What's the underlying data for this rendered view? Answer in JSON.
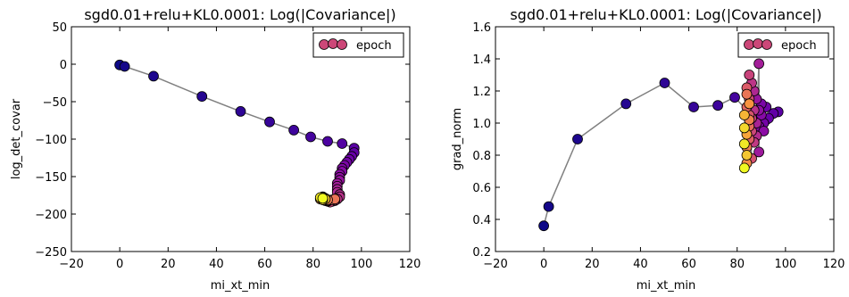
{
  "chart_data": [
    {
      "type": "scatter",
      "title": "sgd0.01+relu+KL0.0001: Log(|Covariance|)",
      "xlabel": "mi_xt_min",
      "ylabel": "log_det_covar",
      "xlim": [
        -20,
        120
      ],
      "ylim": [
        -250,
        50
      ],
      "xticks": [
        -20,
        0,
        20,
        40,
        60,
        80,
        100,
        120
      ],
      "yticks": [
        -250,
        -200,
        -150,
        -100,
        -50,
        0,
        50
      ],
      "xtick_labels": [
        "−20",
        "0",
        "20",
        "40",
        "60",
        "80",
        "100",
        "120"
      ],
      "ytick_labels": [
        "−250",
        "−200",
        "−150",
        "−100",
        "−50",
        "0",
        "50"
      ],
      "legend": {
        "label": "epoch",
        "position": "upper right"
      },
      "colormap": "plasma",
      "grid": false,
      "points": [
        [
          0,
          -1
        ],
        [
          2,
          -3
        ],
        [
          14,
          -16
        ],
        [
          34,
          -43
        ],
        [
          50,
          -63
        ],
        [
          62,
          -77
        ],
        [
          72,
          -88
        ],
        [
          79,
          -97
        ],
        [
          86,
          -103
        ],
        [
          92,
          -106
        ],
        [
          97,
          -112
        ],
        [
          97,
          -118
        ],
        [
          96,
          -123
        ],
        [
          95,
          -127
        ],
        [
          94,
          -131
        ],
        [
          93,
          -135
        ],
        [
          92,
          -139
        ],
        [
          92,
          -143
        ],
        [
          91,
          -147
        ],
        [
          91,
          -151
        ],
        [
          91,
          -155
        ],
        [
          90,
          -159
        ],
        [
          90,
          -163
        ],
        [
          90,
          -167
        ],
        [
          90,
          -171
        ],
        [
          91,
          -174
        ],
        [
          91,
          -177
        ],
        [
          90,
          -180
        ],
        [
          89,
          -182
        ],
        [
          88,
          -183
        ],
        [
          87,
          -184
        ],
        [
          86,
          -183
        ],
        [
          85,
          -182
        ],
        [
          84,
          -181
        ],
        [
          83,
          -179
        ],
        [
          84,
          -177
        ],
        [
          85,
          -180
        ],
        [
          86,
          -182
        ],
        [
          88,
          -181
        ],
        [
          89,
          -180
        ],
        [
          86,
          -181
        ],
        [
          84,
          -178
        ],
        [
          85,
          -179
        ],
        [
          83,
          -180
        ],
        [
          84,
          -179
        ],
        [
          84,
          -178
        ],
        [
          85,
          -180
        ],
        [
          84,
          -181
        ],
        [
          83,
          -178
        ],
        [
          84,
          -179
        ]
      ]
    },
    {
      "type": "scatter",
      "title": "sgd0.01+relu+KL0.0001: Log(|Covariance|)",
      "xlabel": "mi_xt_min",
      "ylabel": "grad_norm",
      "xlim": [
        -20,
        120
      ],
      "ylim": [
        0.2,
        1.6
      ],
      "xticks": [
        -20,
        0,
        20,
        40,
        60,
        80,
        100,
        120
      ],
      "yticks": [
        0.2,
        0.4,
        0.6,
        0.8,
        1.0,
        1.2,
        1.4,
        1.6
      ],
      "xtick_labels": [
        "−20",
        "0",
        "20",
        "40",
        "60",
        "80",
        "100",
        "120"
      ],
      "ytick_labels": [
        "0.2",
        "0.4",
        "0.6",
        "0.8",
        "1.0",
        "1.2",
        "1.4",
        "1.6"
      ],
      "legend": {
        "label": "epoch",
        "position": "upper right"
      },
      "colormap": "plasma",
      "grid": false,
      "points": [
        [
          0,
          0.36
        ],
        [
          2,
          0.48
        ],
        [
          14,
          0.9
        ],
        [
          34,
          1.12
        ],
        [
          50,
          1.25
        ],
        [
          62,
          1.1
        ],
        [
          72,
          1.11
        ],
        [
          79,
          1.16
        ],
        [
          86,
          1.05
        ],
        [
          92,
          1.02
        ],
        [
          97,
          1.07
        ],
        [
          95,
          1.06
        ],
        [
          93,
          1.03
        ],
        [
          92,
          1.1
        ],
        [
          91,
          1.0
        ],
        [
          90,
          1.12
        ],
        [
          89,
          0.98
        ],
        [
          90,
          1.05
        ],
        [
          91,
          0.95
        ],
        [
          89,
          1.08
        ],
        [
          88,
          1.15
        ],
        [
          89,
          0.82
        ],
        [
          89,
          1.37
        ],
        [
          88,
          1.0
        ],
        [
          87,
          1.2
        ],
        [
          88,
          0.92
        ],
        [
          87,
          1.08
        ],
        [
          86,
          1.25
        ],
        [
          87,
          0.88
        ],
        [
          86,
          1.03
        ],
        [
          85,
          1.3
        ],
        [
          86,
          0.95
        ],
        [
          85,
          1.15
        ],
        [
          86,
          0.78
        ],
        [
          85,
          1.05
        ],
        [
          84,
          1.22
        ],
        [
          85,
          0.9
        ],
        [
          84,
          1.1
        ],
        [
          85,
          0.98
        ],
        [
          84,
          1.18
        ],
        [
          84,
          0.85
        ],
        [
          85,
          1.02
        ],
        [
          84,
          0.75
        ],
        [
          85,
          1.12
        ],
        [
          84,
          0.93
        ],
        [
          83,
          1.05
        ],
        [
          84,
          0.8
        ],
        [
          83,
          0.97
        ],
        [
          83,
          0.87
        ],
        [
          83,
          0.72
        ]
      ]
    }
  ]
}
